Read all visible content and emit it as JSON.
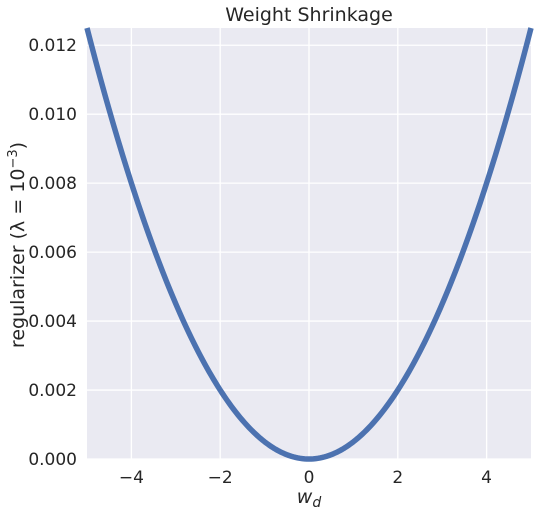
{
  "chart_data": {
    "type": "line",
    "title": "Weight Shrinkage",
    "xlabel": "w",
    "xlabel_subscript": "d",
    "ylabel": "regularizer (λ = 10",
    "ylabel_sup": "−3",
    "ylabel_close": ")",
    "xlim": [
      -5,
      5
    ],
    "ylim": [
      0,
      0.0125
    ],
    "xticks": [
      -4,
      -2,
      0,
      2,
      4
    ],
    "xtick_labels": [
      "−4",
      "−2",
      "0",
      "2",
      "4"
    ],
    "yticks": [
      0,
      0.002,
      0.004,
      0.006,
      0.008,
      0.01,
      0.012
    ],
    "ytick_labels": [
      "0.000",
      "0.002",
      "0.004",
      "0.006",
      "0.008",
      "0.010",
      "0.012"
    ],
    "grid": true,
    "series": [
      {
        "x": [
          -5,
          -4,
          -3,
          -2,
          -1,
          0,
          1,
          2,
          3,
          4,
          5
        ],
        "values": [
          0.0125,
          0.008,
          0.0045,
          0.002,
          0.0005,
          0,
          0.0005,
          0.002,
          0.0045,
          0.008,
          0.0125
        ]
      }
    ],
    "colors": {
      "line": "#4c72b0",
      "background": "#eaeaf2",
      "grid": "#ffffff"
    }
  }
}
